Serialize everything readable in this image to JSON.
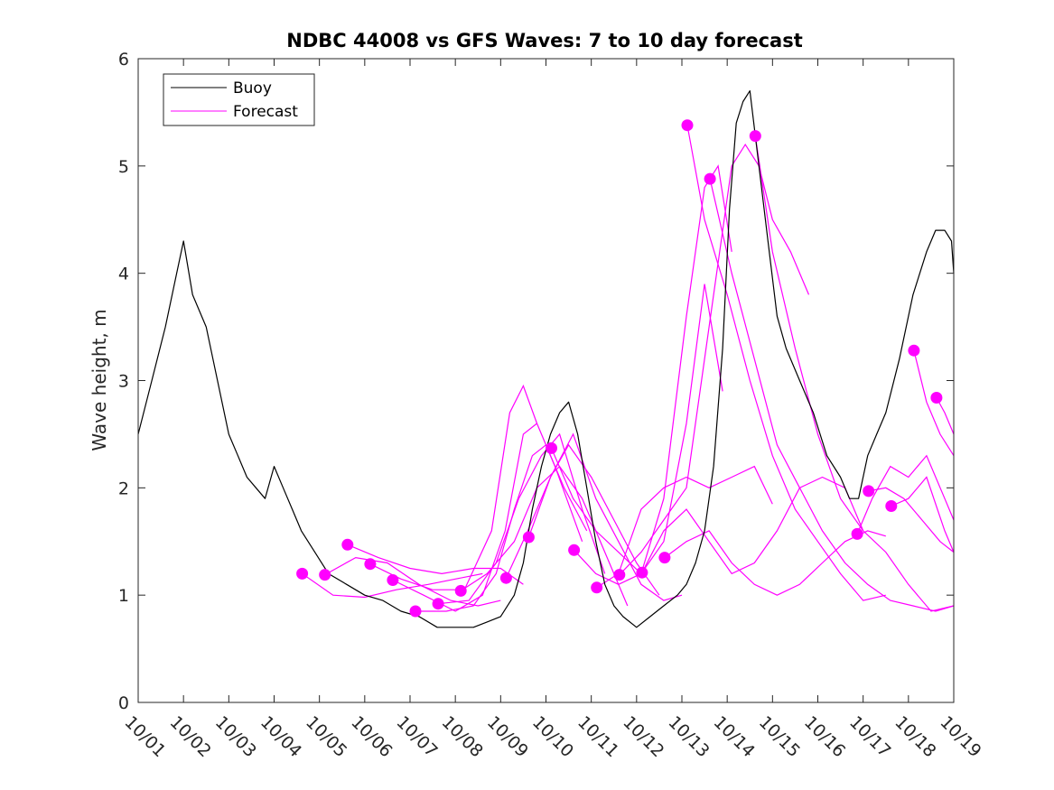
{
  "chart_data": {
    "type": "line",
    "title": "NDBC 44008 vs GFS Waves: 7 to 10 day forecast",
    "xlabel": "",
    "ylabel": "Wave height, m",
    "xlim": [
      0,
      18
    ],
    "ylim": [
      0,
      6
    ],
    "x_tick_labels": [
      "10/01",
      "10/02",
      "10/03",
      "10/04",
      "10/05",
      "10/06",
      "10/07",
      "10/08",
      "10/09",
      "10/10",
      "10/11",
      "10/12",
      "10/13",
      "10/14",
      "10/15",
      "10/16",
      "10/17",
      "10/18",
      "10/19"
    ],
    "y_ticks": [
      0,
      1,
      2,
      3,
      4,
      5,
      6
    ],
    "x_unit": "days since 10/01",
    "legend": {
      "position": "top-left",
      "entries": [
        {
          "label": "Buoy",
          "color": "#000000"
        },
        {
          "label": "Forecast",
          "color": "#ff00ff"
        }
      ]
    },
    "series": [
      {
        "name": "Buoy",
        "color": "#000000",
        "x": [
          0,
          0.3,
          0.6,
          0.85,
          1.0,
          1.2,
          1.5,
          1.75,
          2.0,
          2.2,
          2.4,
          2.6,
          2.8,
          3.0,
          3.2,
          3.4,
          3.6,
          3.9,
          4.2,
          4.6,
          5.0,
          5.4,
          5.8,
          6.2,
          6.6,
          7.0,
          7.4,
          7.7,
          8.0,
          8.3,
          8.5,
          8.7,
          8.9,
          9.1,
          9.3,
          9.5,
          9.7,
          9.9,
          10.1,
          10.3,
          10.5,
          10.7,
          11.0,
          11.3,
          11.6,
          11.9,
          12.1,
          12.3,
          12.5,
          12.7,
          12.9,
          13.05,
          13.2,
          13.35,
          13.5,
          13.7,
          13.9,
          14.1,
          14.3,
          14.6,
          14.9,
          15.2,
          15.5,
          15.7,
          15.9,
          16.1,
          16.3,
          16.5,
          16.8,
          17.1,
          17.4,
          17.6,
          17.8,
          17.95,
          18.0
        ],
        "y": [
          2.5,
          3.0,
          3.5,
          4.0,
          4.3,
          3.8,
          3.5,
          3.0,
          2.5,
          2.3,
          2.1,
          2.0,
          1.9,
          2.2,
          2.0,
          1.8,
          1.6,
          1.4,
          1.2,
          1.1,
          1.0,
          0.95,
          0.85,
          0.8,
          0.7,
          0.7,
          0.7,
          0.75,
          0.8,
          1.0,
          1.3,
          1.8,
          2.2,
          2.5,
          2.7,
          2.8,
          2.5,
          2.0,
          1.5,
          1.1,
          0.9,
          0.8,
          0.7,
          0.8,
          0.9,
          1.0,
          1.1,
          1.3,
          1.6,
          2.2,
          3.3,
          4.6,
          5.4,
          5.6,
          5.7,
          5.0,
          4.3,
          3.6,
          3.3,
          3.0,
          2.7,
          2.3,
          2.1,
          1.9,
          1.9,
          2.3,
          2.5,
          2.7,
          3.2,
          3.8,
          4.2,
          4.4,
          4.4,
          4.3,
          4.0
        ]
      }
    ],
    "forecast_markers": {
      "color": "#ff00ff",
      "points": [
        {
          "x": 3.62,
          "y": 1.2
        },
        {
          "x": 4.12,
          "y": 1.19
        },
        {
          "x": 4.62,
          "y": 1.47
        },
        {
          "x": 5.12,
          "y": 1.29
        },
        {
          "x": 5.62,
          "y": 1.14
        },
        {
          "x": 6.12,
          "y": 0.85
        },
        {
          "x": 6.62,
          "y": 0.92
        },
        {
          "x": 7.12,
          "y": 1.04
        },
        {
          "x": 8.12,
          "y": 1.16
        },
        {
          "x": 8.62,
          "y": 1.54
        },
        {
          "x": 9.12,
          "y": 2.37
        },
        {
          "x": 9.62,
          "y": 1.42
        },
        {
          "x": 10.12,
          "y": 1.07
        },
        {
          "x": 10.62,
          "y": 1.19
        },
        {
          "x": 11.12,
          "y": 1.21
        },
        {
          "x": 11.62,
          "y": 1.35
        },
        {
          "x": 12.12,
          "y": 5.38
        },
        {
          "x": 12.62,
          "y": 4.88
        },
        {
          "x": 13.62,
          "y": 5.28
        },
        {
          "x": 15.87,
          "y": 1.57
        },
        {
          "x": 16.12,
          "y": 1.97
        },
        {
          "x": 16.62,
          "y": 1.83
        },
        {
          "x": 17.12,
          "y": 3.28
        },
        {
          "x": 17.62,
          "y": 2.84
        }
      ]
    },
    "forecast_tracks": [
      {
        "x": [
          3.62,
          4.3,
          5.0,
          5.7,
          6.4,
          7.0,
          7.6
        ],
        "y": [
          1.2,
          1.0,
          0.98,
          1.05,
          1.1,
          1.15,
          1.2
        ]
      },
      {
        "x": [
          4.12,
          4.8,
          5.5,
          6.2,
          6.9,
          7.5,
          8.0
        ],
        "y": [
          1.19,
          1.35,
          1.3,
          1.1,
          0.95,
          0.9,
          0.95
        ]
      },
      {
        "x": [
          4.62,
          5.3,
          6.0,
          6.7,
          7.4,
          8.0,
          8.5
        ],
        "y": [
          1.47,
          1.35,
          1.25,
          1.2,
          1.25,
          1.25,
          1.1
        ]
      },
      {
        "x": [
          5.12,
          5.8,
          6.5,
          7.2,
          7.8,
          8.2,
          8.5,
          8.8
        ],
        "y": [
          1.29,
          1.15,
          1.05,
          1.05,
          1.6,
          2.7,
          2.95,
          2.6
        ]
      },
      {
        "x": [
          5.62,
          6.3,
          7.0,
          7.6,
          8.1,
          8.5,
          8.8,
          9.2,
          9.8
        ],
        "y": [
          1.14,
          1.0,
          0.85,
          1.0,
          1.6,
          2.5,
          2.6,
          2.2,
          1.5
        ]
      },
      {
        "x": [
          6.12,
          6.8,
          7.4,
          7.9,
          8.3,
          8.7,
          9.0,
          9.4,
          9.9
        ],
        "y": [
          0.85,
          0.85,
          0.9,
          1.2,
          1.8,
          2.3,
          2.4,
          2.0,
          1.6
        ]
      },
      {
        "x": [
          6.62,
          7.3,
          7.9,
          8.4,
          8.9,
          9.3,
          9.8,
          10.3
        ],
        "y": [
          0.92,
          0.95,
          1.3,
          1.9,
          2.3,
          2.5,
          1.8,
          1.2
        ]
      },
      {
        "x": [
          7.12,
          7.7,
          8.3,
          8.8,
          9.3,
          9.8,
          10.3,
          10.8
        ],
        "y": [
          1.04,
          1.2,
          1.5,
          2.0,
          2.2,
          1.9,
          1.4,
          0.9
        ]
      },
      {
        "x": [
          8.12,
          8.6,
          9.1,
          9.5,
          10.0,
          10.5,
          11.0,
          11.5
        ],
        "y": [
          1.16,
          1.6,
          2.1,
          2.4,
          2.1,
          1.7,
          1.3,
          1.0
        ]
      },
      {
        "x": [
          8.62,
          9.1,
          9.6,
          10.1,
          10.6,
          11.1,
          11.6,
          12.0
        ],
        "y": [
          1.54,
          2.1,
          2.5,
          1.9,
          1.5,
          1.1,
          0.95,
          1.0
        ]
      },
      {
        "x": [
          9.12,
          9.6,
          10.1,
          10.6,
          11.1,
          11.6,
          12.1,
          12.5,
          12.9
        ],
        "y": [
          2.37,
          1.9,
          1.6,
          1.4,
          1.2,
          1.5,
          2.6,
          3.9,
          2.9
        ]
      },
      {
        "x": [
          9.62,
          10.1,
          10.6,
          11.1,
          11.6,
          12.1,
          12.5,
          12.8,
          13.1
        ],
        "y": [
          1.42,
          1.2,
          1.1,
          1.2,
          1.9,
          3.6,
          4.8,
          5.0,
          4.2
        ]
      },
      {
        "x": [
          10.12,
          10.6,
          11.1,
          11.6,
          12.1,
          12.6,
          13.1,
          13.6,
          14.0
        ],
        "y": [
          1.07,
          1.2,
          1.8,
          2.0,
          2.1,
          2.0,
          2.1,
          2.2,
          1.85
        ]
      },
      {
        "x": [
          10.62,
          11.1,
          11.6,
          12.1,
          12.6,
          13.1,
          13.4,
          13.7,
          14.0,
          14.4,
          14.8
        ],
        "y": [
          1.19,
          1.4,
          1.7,
          2.0,
          3.5,
          5.0,
          5.2,
          5.0,
          4.5,
          4.2,
          3.8
        ]
      },
      {
        "x": [
          11.12,
          11.6,
          12.1,
          12.6,
          13.1,
          13.6,
          14.1,
          14.6,
          15.1,
          15.6,
          16.0
        ],
        "y": [
          1.21,
          1.6,
          1.8,
          1.5,
          1.2,
          1.3,
          1.6,
          2.0,
          2.1,
          2.0,
          1.6
        ]
      },
      {
        "x": [
          11.62,
          12.1,
          12.6,
          13.1,
          13.6,
          14.1,
          14.6,
          15.1,
          15.6,
          16.1,
          16.5
        ],
        "y": [
          1.35,
          1.5,
          1.6,
          1.3,
          1.1,
          1.0,
          1.1,
          1.3,
          1.5,
          1.6,
          1.55
        ]
      },
      {
        "x": [
          12.12,
          12.5,
          13.0,
          13.5,
          14.0,
          14.5,
          15.0,
          15.5,
          16.0,
          16.5
        ],
        "y": [
          5.38,
          4.5,
          3.8,
          3.0,
          2.3,
          1.8,
          1.5,
          1.2,
          0.95,
          1.0
        ]
      },
      {
        "x": [
          12.62,
          13.1,
          13.6,
          14.1,
          14.6,
          15.1,
          15.6,
          16.1,
          16.6,
          17.1,
          17.6,
          18.0
        ],
        "y": [
          4.88,
          4.0,
          3.2,
          2.4,
          2.0,
          1.6,
          1.3,
          1.1,
          0.95,
          0.9,
          0.85,
          0.9
        ]
      },
      {
        "x": [
          13.62,
          14.0,
          14.5,
          15.0,
          15.5,
          16.0,
          16.5,
          17.0,
          17.5,
          18.0
        ],
        "y": [
          5.28,
          4.2,
          3.3,
          2.5,
          1.9,
          1.6,
          1.4,
          1.1,
          0.85,
          0.9
        ]
      },
      {
        "x": [
          15.87,
          16.2,
          16.6,
          17.0,
          17.4,
          17.8,
          18.0
        ],
        "y": [
          1.57,
          1.9,
          2.2,
          2.1,
          2.3,
          1.9,
          1.7
        ]
      },
      {
        "x": [
          16.12,
          16.5,
          16.9,
          17.3,
          17.7,
          18.0
        ],
        "y": [
          1.97,
          2.0,
          1.9,
          1.7,
          1.5,
          1.4
        ]
      },
      {
        "x": [
          16.62,
          17.0,
          17.4,
          17.8,
          18.0
        ],
        "y": [
          1.83,
          1.9,
          2.1,
          1.6,
          1.4
        ]
      },
      {
        "x": [
          17.12,
          17.4,
          17.7,
          18.0
        ],
        "y": [
          3.28,
          2.8,
          2.5,
          2.3
        ]
      },
      {
        "x": [
          17.62,
          17.8,
          18.0
        ],
        "y": [
          2.84,
          2.7,
          2.5
        ]
      }
    ]
  }
}
